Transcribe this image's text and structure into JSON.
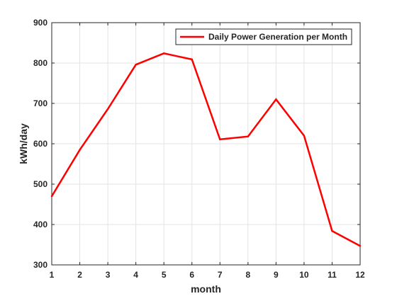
{
  "chart_data": {
    "type": "line",
    "title": "",
    "xlabel": "month",
    "ylabel": "kWh/day",
    "x": [
      1,
      2,
      3,
      4,
      5,
      6,
      7,
      8,
      9,
      10,
      11,
      12
    ],
    "series": [
      {
        "name": "Daily Power Generation per Month",
        "color": "#ff0000",
        "values": [
          470,
          585,
          686,
          796,
          824,
          809,
          611,
          618,
          710,
          620,
          384,
          347
        ]
      }
    ],
    "xlim": [
      1,
      12
    ],
    "ylim": [
      300,
      900
    ],
    "xticks": [
      1,
      2,
      3,
      4,
      5,
      6,
      7,
      8,
      9,
      10,
      11,
      12
    ],
    "yticks": [
      300,
      400,
      500,
      600,
      700,
      800,
      900
    ],
    "grid": true,
    "legend_position": "top-right"
  }
}
